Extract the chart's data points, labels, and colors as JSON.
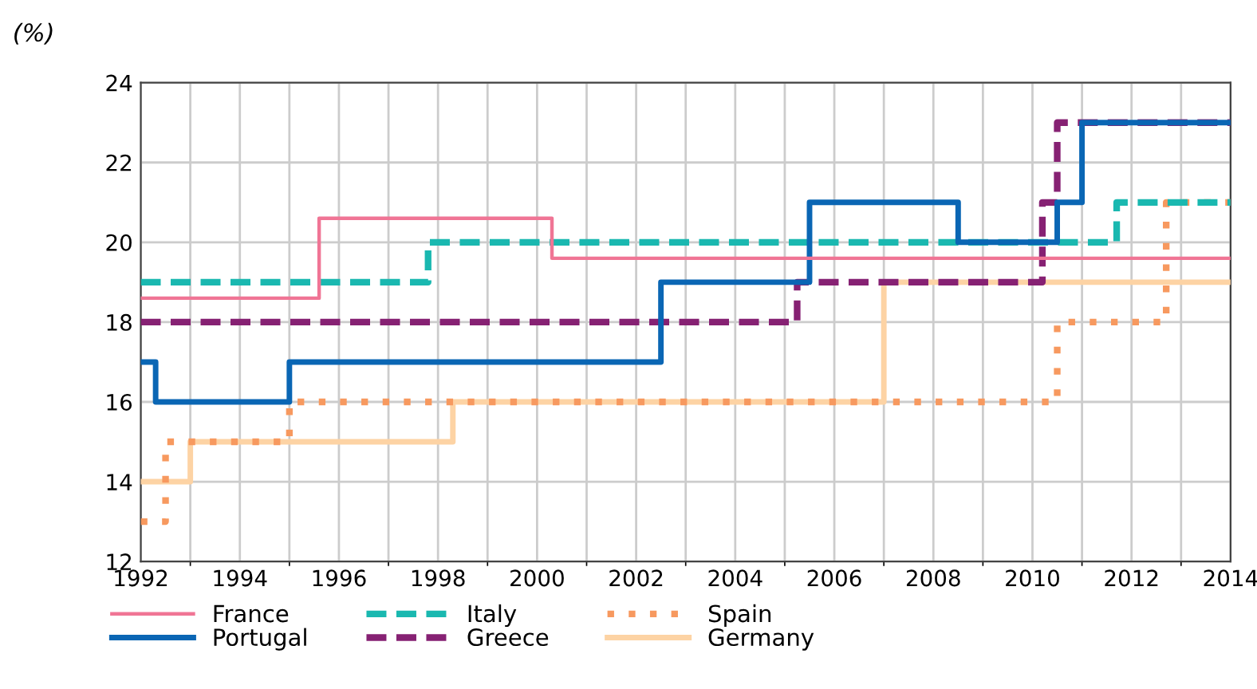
{
  "chart_data": {
    "type": "step",
    "ylabel": "(%)",
    "xlim": [
      1992,
      2014
    ],
    "xticks": [
      1992,
      1994,
      1996,
      1998,
      2000,
      2002,
      2004,
      2006,
      2008,
      2010,
      2012,
      2014
    ],
    "ylim": [
      12,
      24
    ],
    "yticks": [
      12,
      14,
      16,
      18,
      20,
      22,
      24
    ],
    "grid": true,
    "legend": "bottom",
    "series": [
      {
        "name": "France",
        "color": "#f07595",
        "line_style": "solid",
        "x": [
          1992,
          1995.6,
          2000.3,
          2014
        ],
        "values": [
          18.6,
          20.6,
          19.6,
          19.6
        ]
      },
      {
        "name": "Portugal",
        "color": "#0a66b4",
        "line_style": "solid",
        "x": [
          1992,
          1992.3,
          1995,
          2002.5,
          2005.5,
          2008.5,
          2010.5,
          2011,
          2014
        ],
        "values": [
          17,
          16,
          17,
          19,
          21,
          20,
          21,
          23,
          23
        ]
      },
      {
        "name": "Italy",
        "color": "#1ab8b0",
        "line_style": "dashed",
        "x": [
          1992,
          1997.8,
          2011.7,
          2014
        ],
        "values": [
          19,
          20,
          21,
          21
        ]
      },
      {
        "name": "Greece",
        "color": "#862173",
        "line_style": "dashed",
        "x": [
          1992,
          2005.25,
          2010.2,
          2010.5,
          2014
        ],
        "values": [
          18,
          19,
          21,
          23,
          23
        ]
      },
      {
        "name": "Spain",
        "color": "#f7995f",
        "line_style": "dotted",
        "x": [
          1992,
          1992.5,
          1995,
          2010.5,
          2012.7,
          2014
        ],
        "values": [
          13,
          15,
          16,
          18,
          21,
          21
        ]
      },
      {
        "name": "Germany",
        "color": "#fdd3a4",
        "line_style": "solid",
        "x": [
          1992,
          1993,
          1998.3,
          2007,
          2014
        ],
        "values": [
          14,
          15,
          16,
          19,
          19
        ]
      }
    ]
  }
}
